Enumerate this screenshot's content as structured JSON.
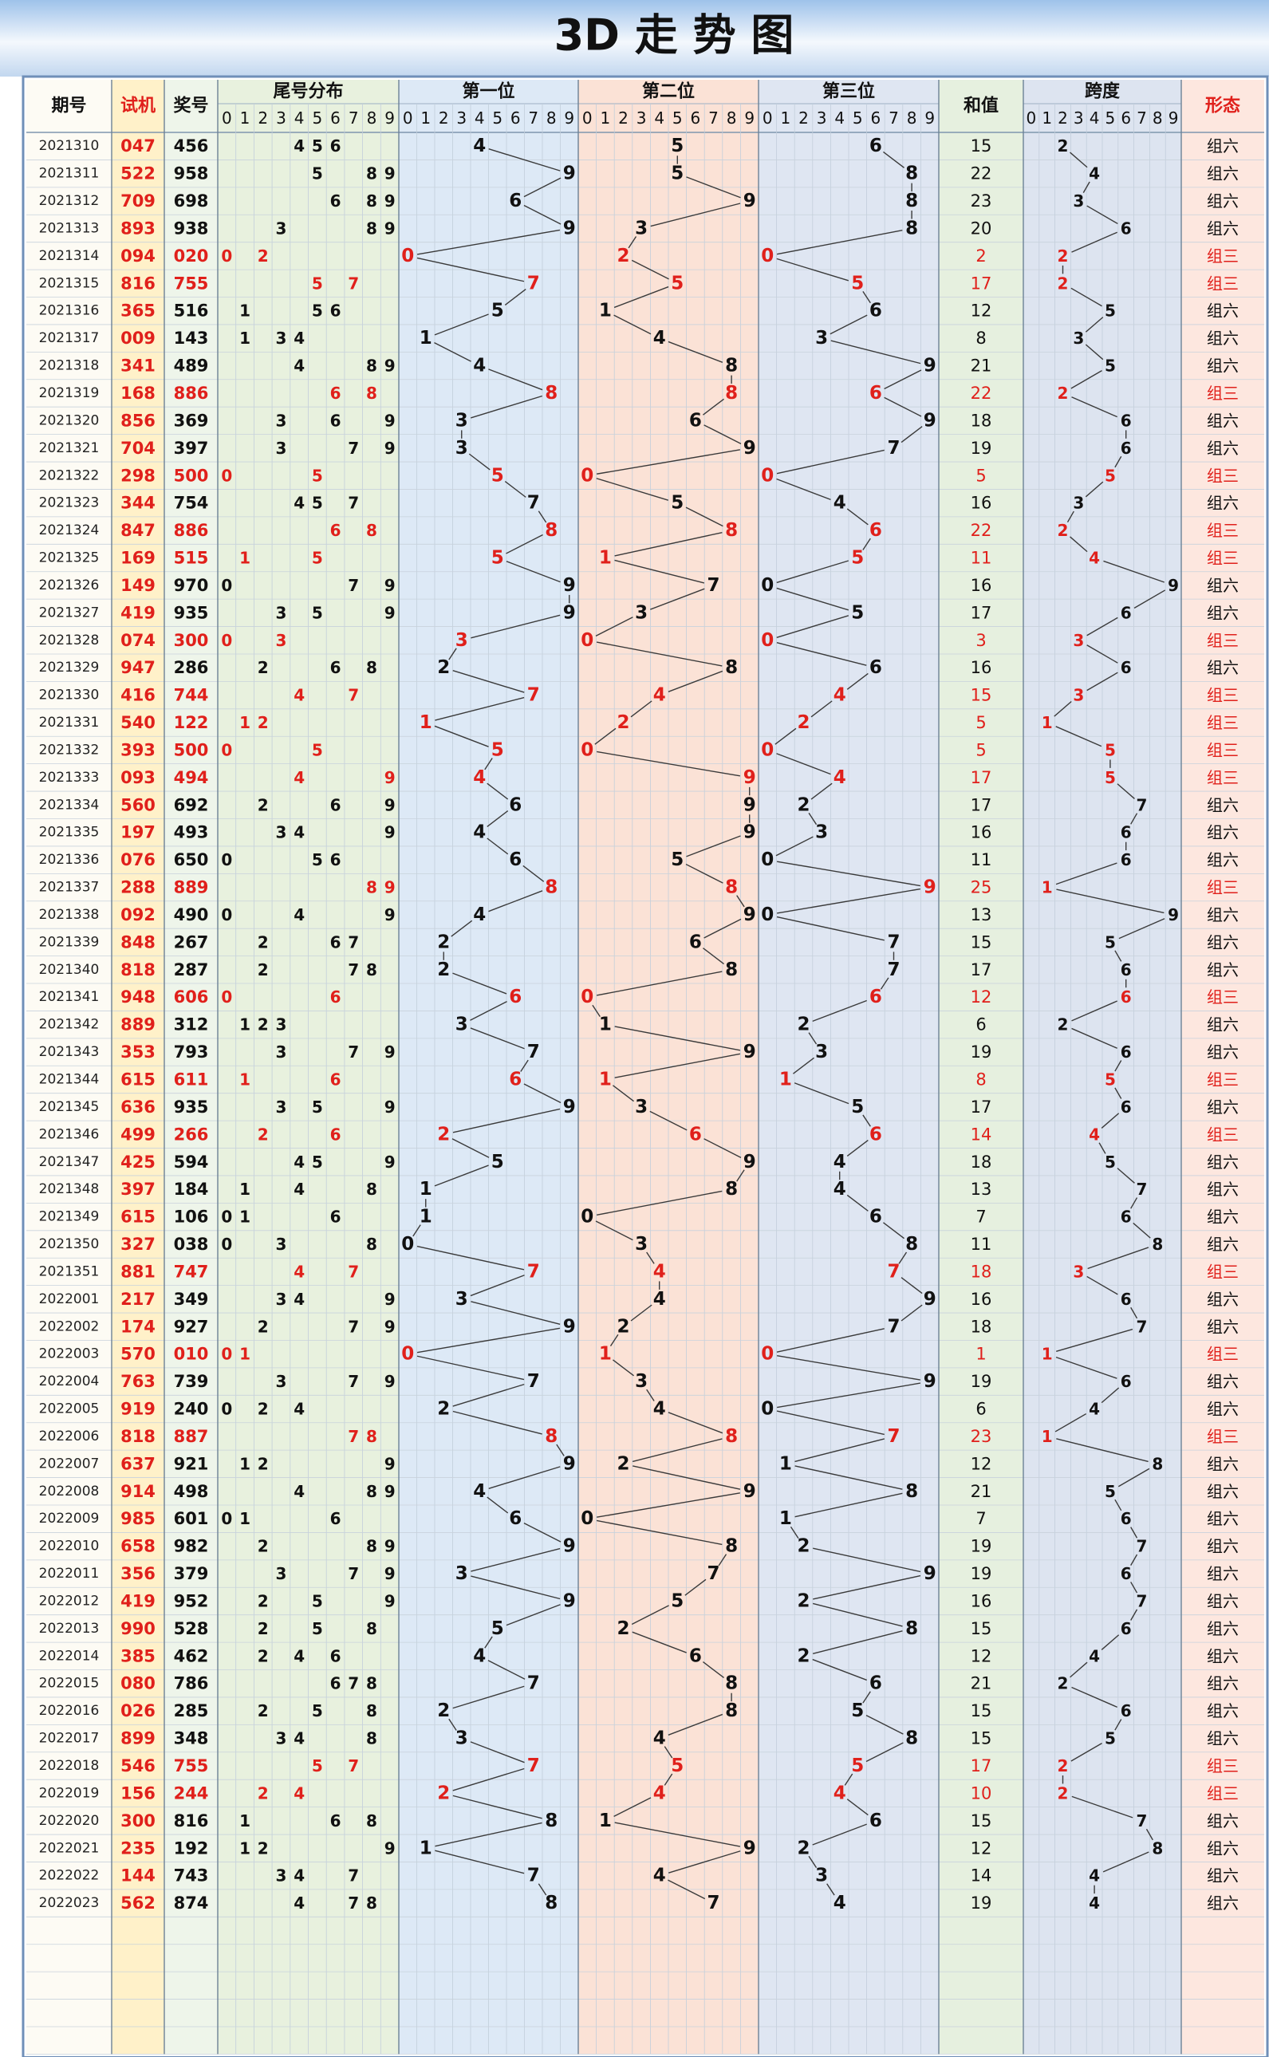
{
  "chart_data": {
    "type": "table",
    "title": "3D 走 势 图",
    "colors": {
      "hot": "#e0201b",
      "normal": "#111111",
      "line": "#3a3a3a",
      "header_band": "#cfe0f3",
      "period_bg": "#fdfbf4",
      "test_bg": "#fff1c9",
      "win_bg": "#eef5ea",
      "tail_bg": "#e8f1de",
      "pos1_bg": "#dde9f6",
      "pos2_bg": "#fbe2d6",
      "pos3_bg": "#dfe6f2",
      "sum_bg": "#e6f0df",
      "span_bg": "#dde4f0",
      "shape_bg": "#fde7df"
    },
    "headers": {
      "period": "期号",
      "test": "试机",
      "win": "奖号",
      "tail": "尾号分布",
      "pos1": "第一位",
      "pos2": "第二位",
      "pos3": "第三位",
      "sum": "和值",
      "span": "跨度",
      "shape": "形态"
    },
    "digits": [
      "0",
      "1",
      "2",
      "3",
      "4",
      "5",
      "6",
      "7",
      "8",
      "9"
    ],
    "shape_labels": {
      "six": "组六",
      "three": "组三"
    },
    "empty_rows": 5,
    "rows": [
      {
        "p": "2021310",
        "t": "047",
        "w": "456"
      },
      {
        "p": "2021311",
        "t": "522",
        "w": "958"
      },
      {
        "p": "2021312",
        "t": "709",
        "w": "698"
      },
      {
        "p": "2021313",
        "t": "893",
        "w": "938"
      },
      {
        "p": "2021314",
        "t": "094",
        "w": "020"
      },
      {
        "p": "2021315",
        "t": "816",
        "w": "755"
      },
      {
        "p": "2021316",
        "t": "365",
        "w": "516"
      },
      {
        "p": "2021317",
        "t": "009",
        "w": "143"
      },
      {
        "p": "2021318",
        "t": "341",
        "w": "489"
      },
      {
        "p": "2021319",
        "t": "168",
        "w": "886"
      },
      {
        "p": "2021320",
        "t": "856",
        "w": "369"
      },
      {
        "p": "2021321",
        "t": "704",
        "w": "397"
      },
      {
        "p": "2021322",
        "t": "298",
        "w": "500"
      },
      {
        "p": "2021323",
        "t": "344",
        "w": "754"
      },
      {
        "p": "2021324",
        "t": "847",
        "w": "886"
      },
      {
        "p": "2021325",
        "t": "169",
        "w": "515"
      },
      {
        "p": "2021326",
        "t": "149",
        "w": "970"
      },
      {
        "p": "2021327",
        "t": "419",
        "w": "935"
      },
      {
        "p": "2021328",
        "t": "074",
        "w": "300"
      },
      {
        "p": "2021329",
        "t": "947",
        "w": "286"
      },
      {
        "p": "2021330",
        "t": "416",
        "w": "744"
      },
      {
        "p": "2021331",
        "t": "540",
        "w": "122"
      },
      {
        "p": "2021332",
        "t": "393",
        "w": "500"
      },
      {
        "p": "2021333",
        "t": "093",
        "w": "494"
      },
      {
        "p": "2021334",
        "t": "560",
        "w": "692"
      },
      {
        "p": "2021335",
        "t": "197",
        "w": "493"
      },
      {
        "p": "2021336",
        "t": "076",
        "w": "650"
      },
      {
        "p": "2021337",
        "t": "288",
        "w": "889"
      },
      {
        "p": "2021338",
        "t": "092",
        "w": "490"
      },
      {
        "p": "2021339",
        "t": "848",
        "w": "267"
      },
      {
        "p": "2021340",
        "t": "818",
        "w": "287"
      },
      {
        "p": "2021341",
        "t": "948",
        "w": "606"
      },
      {
        "p": "2021342",
        "t": "889",
        "w": "312"
      },
      {
        "p": "2021343",
        "t": "353",
        "w": "793"
      },
      {
        "p": "2021344",
        "t": "615",
        "w": "611"
      },
      {
        "p": "2021345",
        "t": "636",
        "w": "935"
      },
      {
        "p": "2021346",
        "t": "499",
        "w": "266"
      },
      {
        "p": "2021347",
        "t": "425",
        "w": "594"
      },
      {
        "p": "2021348",
        "t": "397",
        "w": "184"
      },
      {
        "p": "2021349",
        "t": "615",
        "w": "106"
      },
      {
        "p": "2021350",
        "t": "327",
        "w": "038"
      },
      {
        "p": "2021351",
        "t": "881",
        "w": "747"
      },
      {
        "p": "2022001",
        "t": "217",
        "w": "349"
      },
      {
        "p": "2022002",
        "t": "174",
        "w": "927"
      },
      {
        "p": "2022003",
        "t": "570",
        "w": "010"
      },
      {
        "p": "2022004",
        "t": "763",
        "w": "739"
      },
      {
        "p": "2022005",
        "t": "919",
        "w": "240"
      },
      {
        "p": "2022006",
        "t": "818",
        "w": "887"
      },
      {
        "p": "2022007",
        "t": "637",
        "w": "921"
      },
      {
        "p": "2022008",
        "t": "914",
        "w": "498"
      },
      {
        "p": "2022009",
        "t": "985",
        "w": "601"
      },
      {
        "p": "2022010",
        "t": "658",
        "w": "982"
      },
      {
        "p": "2022011",
        "t": "356",
        "w": "379"
      },
      {
        "p": "2022012",
        "t": "419",
        "w": "952"
      },
      {
        "p": "2022013",
        "t": "990",
        "w": "528"
      },
      {
        "p": "2022014",
        "t": "385",
        "w": "462"
      },
      {
        "p": "2022015",
        "t": "080",
        "w": "786"
      },
      {
        "p": "2022016",
        "t": "026",
        "w": "285"
      },
      {
        "p": "2022017",
        "t": "899",
        "w": "348"
      },
      {
        "p": "2022018",
        "t": "546",
        "w": "755"
      },
      {
        "p": "2022019",
        "t": "156",
        "w": "244"
      },
      {
        "p": "2022020",
        "t": "300",
        "w": "816"
      },
      {
        "p": "2022021",
        "t": "235",
        "w": "192"
      },
      {
        "p": "2022022",
        "t": "144",
        "w": "743"
      },
      {
        "p": "2022023",
        "t": "562",
        "w": "874"
      }
    ]
  }
}
